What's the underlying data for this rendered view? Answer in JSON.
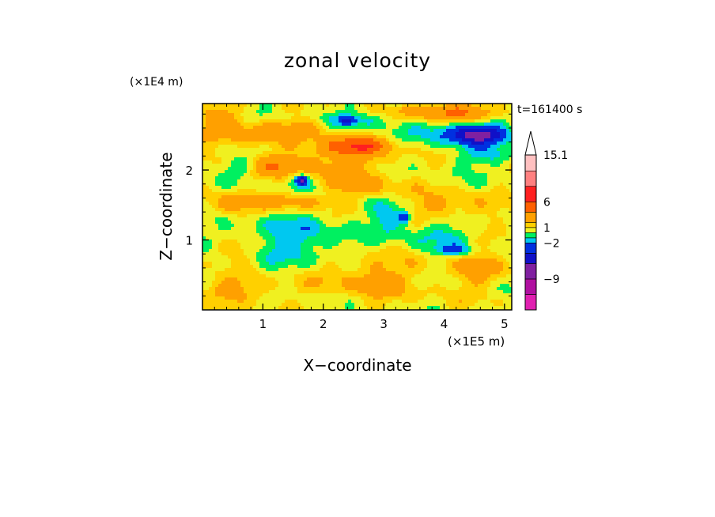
{
  "chart_data": {
    "type": "heatmap",
    "title": "zonal velocity",
    "xlabel": "X−coordinate",
    "ylabel": "Z−coordinate",
    "x_scale_label": "(×1E5 m)",
    "y_scale_label": "(×1E4 m)",
    "time_label": "t=161400 s",
    "xlim": [
      0,
      5.12
    ],
    "ylim": [
      0,
      2.95
    ],
    "x_ticks": [
      "1",
      "2",
      "3",
      "4",
      "5"
    ],
    "x_tick_values": [
      1,
      2,
      3,
      4,
      5
    ],
    "y_ticks": [
      "1",
      "2"
    ],
    "y_tick_values": [
      1,
      2
    ],
    "colorbar": {
      "levels": [
        {
          "max": -12,
          "color": "#e020b0"
        },
        {
          "max": -9,
          "color": "#b010a0"
        },
        {
          "max": -6,
          "color": "#8020a0"
        },
        {
          "max": -4,
          "color": "#1010c8"
        },
        {
          "max": -2,
          "color": "#0030e0"
        },
        {
          "max": -1,
          "color": "#00c8f0"
        },
        {
          "max": 0,
          "color": "#00f060"
        },
        {
          "max": 1,
          "color": "#f0f020"
        },
        {
          "max": 2,
          "color": "#ffd000"
        },
        {
          "max": 4,
          "color": "#ffa000"
        },
        {
          "max": 6,
          "color": "#ff6000"
        },
        {
          "max": 9,
          "color": "#ff2020"
        },
        {
          "max": 12,
          "color": "#ff8080"
        },
        {
          "max": 15.1,
          "color": "#ffc0c0"
        },
        {
          "max": 99,
          "color": "#ffffff"
        }
      ],
      "labels": [
        "15.1",
        "6",
        "1",
        "−2",
        "−9"
      ],
      "label_values": [
        15.1,
        6,
        1,
        -2,
        -9
      ],
      "extend": "max"
    },
    "field": {
      "background": 0.5,
      "features": [
        {
          "x": 0.6,
          "z": 0.3,
          "a": 2.1,
          "sx": 0.7,
          "sz": 0.18
        },
        {
          "x": 2.8,
          "z": 0.45,
          "a": 2.1,
          "sx": 0.9,
          "sz": 0.35
        },
        {
          "x": 4.6,
          "z": 0.6,
          "a": 1.8,
          "sx": 0.5,
          "sz": 0.35
        },
        {
          "x": 0.5,
          "z": 0.85,
          "a": 1.6,
          "sx": 0.45,
          "sz": 0.16
        },
        {
          "x": 1.5,
          "z": 1.0,
          "a": -2.1,
          "sx": 0.9,
          "sz": 0.35
        },
        {
          "x": 3.9,
          "z": 1.1,
          "a": -1.6,
          "sx": 0.7,
          "sz": 0.25
        },
        {
          "x": 4.2,
          "z": 0.85,
          "a": -2.6,
          "sx": 0.35,
          "sz": 0.08
        },
        {
          "x": 0.5,
          "z": 1.5,
          "a": 2.2,
          "sx": 0.4,
          "sz": 0.2
        },
        {
          "x": 1.5,
          "z": 1.55,
          "a": 2.5,
          "sx": 0.6,
          "sz": 0.12
        },
        {
          "x": 3.1,
          "z": 1.35,
          "a": -2.6,
          "sx": 0.3,
          "sz": 0.2
        },
        {
          "x": 3.35,
          "z": 1.32,
          "a": -4.5,
          "sx": 0.09,
          "sz": 0.07
        },
        {
          "x": 4.0,
          "z": 1.45,
          "a": 2.1,
          "sx": 0.8,
          "sz": 0.22
        },
        {
          "x": 2.7,
          "z": 1.75,
          "a": 1.8,
          "sx": 0.6,
          "sz": 0.15
        },
        {
          "x": 0.6,
          "z": 2.05,
          "a": -1.8,
          "sx": 0.25,
          "sz": 0.12
        },
        {
          "x": 1.2,
          "z": 2.05,
          "a": 2.1,
          "sx": 0.5,
          "sz": 0.17
        },
        {
          "x": 1.6,
          "z": 1.85,
          "a": -3.0,
          "sx": 0.2,
          "sz": 0.12
        },
        {
          "x": 1.65,
          "z": 1.85,
          "a": -4.5,
          "sx": 0.08,
          "sz": 0.06
        },
        {
          "x": 2.55,
          "z": 2.35,
          "a": 4.6,
          "sx": 0.55,
          "sz": 0.13
        },
        {
          "x": 2.2,
          "z": 2.1,
          "a": 2.4,
          "sx": 0.9,
          "sz": 0.25
        },
        {
          "x": 4.7,
          "z": 2.2,
          "a": -1.7,
          "sx": 0.5,
          "sz": 0.14
        },
        {
          "x": 0.6,
          "z": 2.5,
          "a": 2.5,
          "sx": 0.7,
          "sz": 0.18
        },
        {
          "x": 1.7,
          "z": 2.6,
          "a": 2.2,
          "sx": 0.6,
          "sz": 0.15
        },
        {
          "x": 2.5,
          "z": 2.72,
          "a": -2.2,
          "sx": 0.55,
          "sz": 0.13
        },
        {
          "x": 2.4,
          "z": 2.7,
          "a": -4.5,
          "sx": 0.11,
          "sz": 0.05
        },
        {
          "x": 4.6,
          "z": 2.5,
          "a": -5.5,
          "sx": 0.45,
          "sz": 0.12
        },
        {
          "x": 4.3,
          "z": 2.55,
          "a": -2.5,
          "sx": 0.75,
          "sz": 0.2
        },
        {
          "x": 4.3,
          "z": 2.82,
          "a": 4.0,
          "sx": 0.7,
          "sz": 0.13
        },
        {
          "x": 3.5,
          "z": 2.85,
          "a": 1.8,
          "sx": 0.4,
          "sz": 0.1
        },
        {
          "x": 0.3,
          "z": 2.8,
          "a": 2.0,
          "sx": 0.4,
          "sz": 0.15
        }
      ]
    }
  }
}
